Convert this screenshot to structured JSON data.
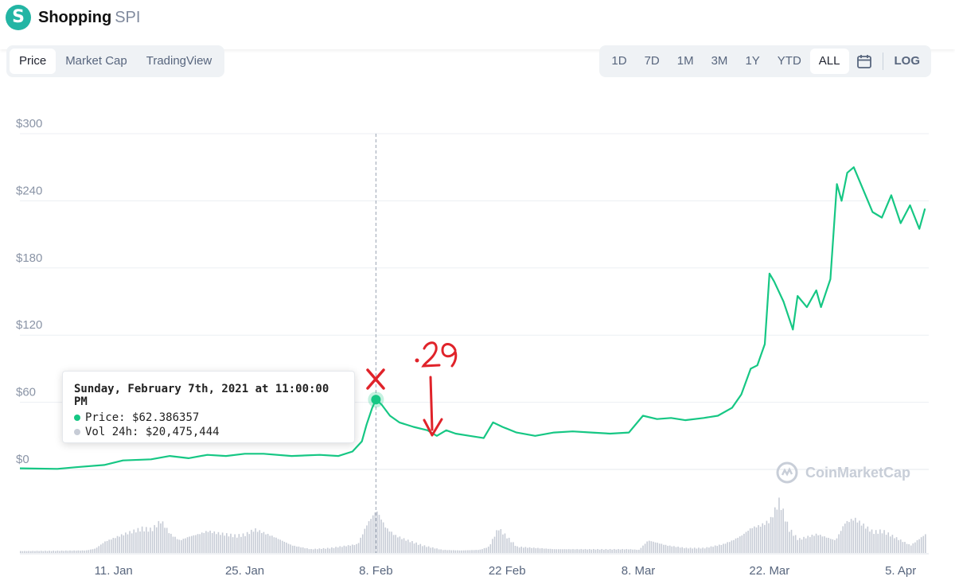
{
  "header": {
    "name": "Shopping",
    "symbol": "SPI",
    "logo_letter": "S"
  },
  "tabs": [
    {
      "label": "Price",
      "active": true
    },
    {
      "label": "Market Cap",
      "active": false
    },
    {
      "label": "TradingView",
      "active": false
    }
  ],
  "ranges": [
    {
      "label": "1D",
      "active": false
    },
    {
      "label": "7D",
      "active": false
    },
    {
      "label": "1M",
      "active": false
    },
    {
      "label": "3M",
      "active": false
    },
    {
      "label": "1Y",
      "active": false
    },
    {
      "label": "YTD",
      "active": false
    },
    {
      "label": "ALL",
      "active": true
    }
  ],
  "log_label": "LOG",
  "tooltip": {
    "title": "Sunday, February 7th, 2021 at 11:00:00 PM",
    "price_label": "Price:",
    "price_value": "$62.386357",
    "vol_label": "Vol 24h:",
    "vol_value": "$20,475,444"
  },
  "watermark": "CoinMarketCap",
  "annotation": {
    "text": ".29",
    "mark": "✕"
  },
  "colors": {
    "line": "#16c784",
    "volume": "#c7ccd6",
    "accent": "#23b5a4",
    "annotation": "#e0232a"
  },
  "chart_data": {
    "type": "line",
    "xlabel": "",
    "ylabel": "",
    "ylim": [
      0,
      300
    ],
    "yticks": [
      "$0",
      "$60",
      "$120",
      "$180",
      "$240",
      "$300"
    ],
    "ytick_values": [
      0,
      60,
      120,
      180,
      240,
      300
    ],
    "xticks": [
      "11. Jan",
      "25. Jan",
      "8. Feb",
      "22 Feb",
      "8. Mar",
      "22. Mar",
      "5. Apr"
    ],
    "xtick_days": [
      11,
      25,
      39,
      53,
      67,
      81,
      95
    ],
    "x_start": "2021-01-01",
    "x_end": "2021-04-08",
    "series": [
      {
        "name": "Price",
        "points": [
          [
            1,
            1
          ],
          [
            5,
            0.5
          ],
          [
            7,
            2
          ],
          [
            10,
            4
          ],
          [
            12,
            8
          ],
          [
            15,
            9
          ],
          [
            17,
            12
          ],
          [
            19,
            10
          ],
          [
            21,
            13
          ],
          [
            23,
            12
          ],
          [
            25,
            14
          ],
          [
            27,
            14
          ],
          [
            30,
            12
          ],
          [
            33,
            13
          ],
          [
            35,
            12
          ],
          [
            36.5,
            16
          ],
          [
            37.5,
            25
          ],
          [
            38,
            40
          ],
          [
            38.6,
            55
          ],
          [
            39,
            62.4
          ],
          [
            39.6,
            58
          ],
          [
            40.5,
            48
          ],
          [
            41.5,
            42
          ],
          [
            43,
            38
          ],
          [
            44.5,
            35
          ],
          [
            45.5,
            30
          ],
          [
            46.5,
            35
          ],
          [
            47.5,
            32
          ],
          [
            49,
            30
          ],
          [
            50.5,
            28
          ],
          [
            51.5,
            42
          ],
          [
            52.5,
            38
          ],
          [
            54,
            33
          ],
          [
            56,
            30
          ],
          [
            58,
            33
          ],
          [
            60,
            34
          ],
          [
            62,
            33
          ],
          [
            64,
            32
          ],
          [
            66,
            33
          ],
          [
            67.5,
            48
          ],
          [
            69,
            45
          ],
          [
            70.5,
            46
          ],
          [
            72,
            44
          ],
          [
            74,
            46
          ],
          [
            75.5,
            48
          ],
          [
            77,
            55
          ],
          [
            78,
            67
          ],
          [
            79,
            90
          ],
          [
            79.7,
            93
          ],
          [
            80.5,
            112
          ],
          [
            81,
            175
          ],
          [
            81.5,
            168
          ],
          [
            82.5,
            150
          ],
          [
            83.5,
            125
          ],
          [
            84,
            155
          ],
          [
            85,
            145
          ],
          [
            86,
            160
          ],
          [
            86.5,
            145
          ],
          [
            87.5,
            170
          ],
          [
            88.2,
            255
          ],
          [
            88.7,
            240
          ],
          [
            89.3,
            265
          ],
          [
            90,
            270
          ],
          [
            91,
            250
          ],
          [
            92,
            230
          ],
          [
            93,
            225
          ],
          [
            94,
            245
          ],
          [
            95,
            220
          ],
          [
            96,
            236
          ],
          [
            97,
            215
          ],
          [
            97.6,
            233
          ]
        ]
      },
      {
        "name": "Vol 24h",
        "days": [
          1,
          8,
          9,
          10,
          12,
          14,
          15,
          16,
          17,
          18,
          19,
          20,
          21,
          22,
          24,
          25,
          26,
          28,
          30,
          32,
          34,
          35,
          36,
          37,
          38,
          39,
          40,
          41,
          42,
          44,
          46,
          48,
          50,
          51,
          52,
          54,
          58,
          62,
          66,
          67,
          68,
          70,
          72,
          74,
          76,
          77,
          78,
          79,
          80,
          81,
          82,
          83,
          84,
          86,
          88,
          89,
          90,
          92,
          93,
          94,
          95,
          96,
          97.6
        ],
        "values": [
          3,
          4,
          7,
          18,
          30,
          40,
          38,
          52,
          30,
          20,
          26,
          30,
          35,
          32,
          28,
          30,
          38,
          26,
          12,
          6,
          8,
          10,
          12,
          14,
          46,
          68,
          40,
          28,
          22,
          12,
          5,
          4,
          5,
          10,
          40,
          10,
          6,
          6,
          6,
          5,
          20,
          12,
          8,
          8,
          14,
          20,
          28,
          40,
          44,
          52,
          85,
          40,
          22,
          30,
          20,
          48,
          55,
          34,
          36,
          28,
          20,
          12,
          30
        ]
      }
    ]
  }
}
